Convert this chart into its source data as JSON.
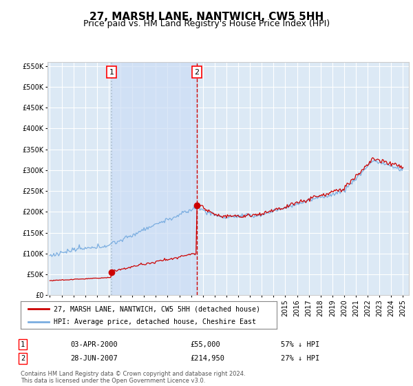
{
  "title": "27, MARSH LANE, NANTWICH, CW5 5HH",
  "subtitle": "Price paid vs. HM Land Registry's House Price Index (HPI)",
  "ylim": [
    0,
    560000
  ],
  "yticks": [
    0,
    50000,
    100000,
    150000,
    200000,
    250000,
    300000,
    350000,
    400000,
    450000,
    500000,
    550000
  ],
  "xlim_start": 1994.8,
  "xlim_end": 2025.5,
  "background_color": "#ffffff",
  "plot_bg_color": "#dce9f5",
  "grid_color": "#ffffff",
  "hpi_color": "#7aade0",
  "price_color": "#cc0000",
  "sale1_x": 2000.25,
  "sale1_y": 55000,
  "sale1_label": "1",
  "sale1_line_color": "#aabbcc",
  "sale1_line_style": "dotted",
  "sale2_x": 2007.49,
  "sale2_y": 214950,
  "sale2_label": "2",
  "sale2_line_color": "#cc0000",
  "sale2_line_style": "dashed",
  "shade_color": "#ccddf5",
  "legend_line1": "27, MARSH LANE, NANTWICH, CW5 5HH (detached house)",
  "legend_line2": "HPI: Average price, detached house, Cheshire East",
  "table_row1": [
    "1",
    "03-APR-2000",
    "£55,000",
    "57% ↓ HPI"
  ],
  "table_row2": [
    "2",
    "28-JUN-2007",
    "£214,950",
    "27% ↓ HPI"
  ],
  "footnote": "Contains HM Land Registry data © Crown copyright and database right 2024.\nThis data is licensed under the Open Government Licence v3.0.",
  "title_fontsize": 11,
  "subtitle_fontsize": 9,
  "tick_fontsize": 7
}
